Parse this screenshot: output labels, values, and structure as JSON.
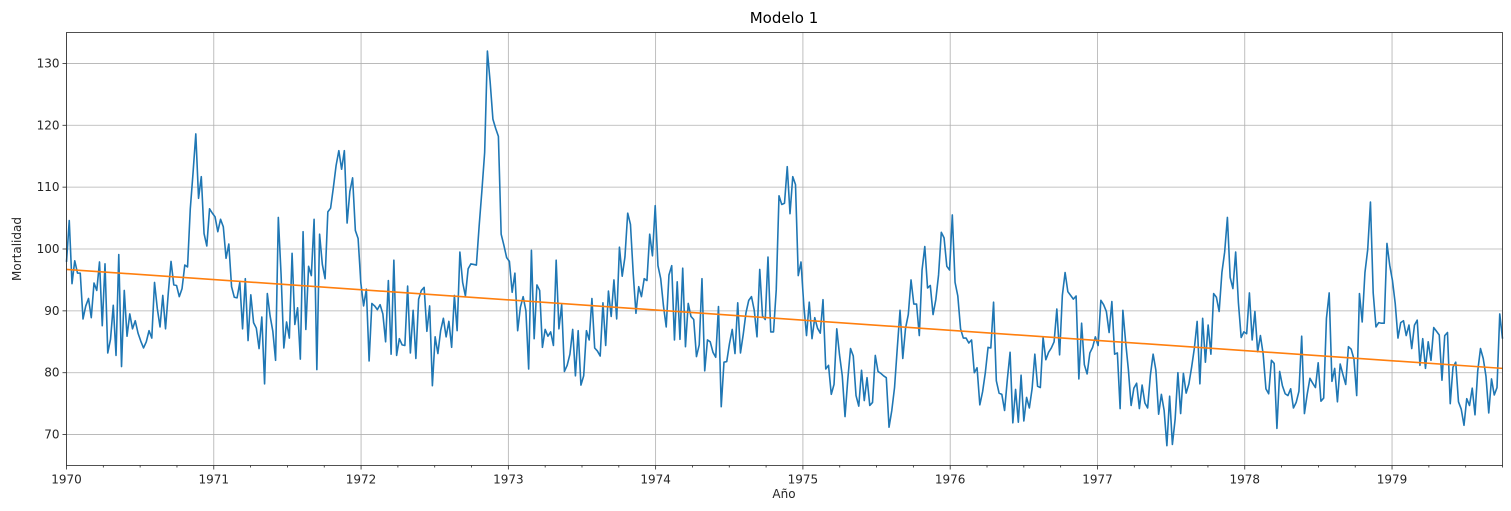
{
  "chart_data": {
    "type": "line",
    "title": "Modelo 1",
    "xlabel": "Año",
    "ylabel": "Mortalidad",
    "xlim": [
      1970.0,
      1979.75
    ],
    "ylim": [
      65,
      135
    ],
    "grid": true,
    "legend": "none",
    "x_ticks": [
      "1970",
      "1971",
      "1972",
      "1973",
      "1974",
      "1975",
      "1976",
      "1977",
      "1978",
      "1979"
    ],
    "y_ticks": [
      70,
      80,
      90,
      100,
      110,
      120,
      130
    ],
    "colors": {
      "series": "#1f77b4",
      "trend": "#ff7f0e"
    },
    "series": [
      {
        "weekly_values": [
          97.9,
          104.6,
          94.4,
          98.1,
          96.1,
          96.1,
          88.7,
          90.8,
          92.0,
          88.9,
          94.5,
          93.3,
          97.9,
          87.6,
          97.6,
          83.2,
          85.4,
          90.9,
          82.8,
          99.1,
          81.0,
          93.3,
          85.9,
          89.5,
          87.1,
          88.4,
          86.4,
          85.1,
          84.0,
          85.0,
          86.8,
          85.6,
          94.6,
          90.4,
          87.4,
          92.5,
          87.1,
          92.9,
          98.0,
          94.2,
          94.1,
          92.3,
          93.6,
          97.4,
          97.1,
          106.5,
          112.3,
          118.6,
          108.2,
          111.7,
          102.5,
          100.5,
          106.5,
          105.8,
          105.2,
          102.8,
          104.8,
          103.6,
          98.5,
          100.8,
          93.9,
          92.2,
          92.1,
          94.6,
          87.1,
          95.2,
          85.2,
          92.6,
          88.1,
          87.2,
          83.9,
          89.0,
          78.2,
          92.8,
          89.2,
          86.7,
          82.0,
          105.1,
          95.9,
          84.0,
          88.2,
          85.6,
          99.3,
          87.8,
          90.5,
          82.2,
          102.8,
          87.0,
          97.2,
          95.7,
          104.8,
          80.5,
          102.4,
          97.5,
          95.2,
          106.0,
          106.6,
          109.9,
          113.5,
          115.9,
          112.9,
          115.9,
          104.2,
          109.3,
          111.5,
          103.0,
          101.7,
          94.5,
          90.8,
          93.5,
          81.9,
          91.2,
          90.8,
          90.2,
          91.0,
          89.5,
          85.0,
          94.9,
          83.0,
          98.2,
          82.8,
          85.5,
          84.5,
          84.4,
          94.0,
          83.2,
          90.1,
          82.3,
          91.9,
          93.3,
          93.8,
          86.7,
          90.8,
          77.9,
          85.8,
          83.1,
          86.8,
          88.8,
          85.8,
          88.3,
          84.1,
          92.5,
          86.8,
          99.5,
          94.6,
          92.4,
          96.8,
          97.6,
          97.5,
          97.4,
          103.7,
          109.4,
          115.6,
          132.0,
          127.0,
          121.0,
          119.5,
          118.2,
          102.4,
          100.6,
          98.6,
          98.0,
          93.0,
          96.1,
          86.8,
          90.6,
          92.3,
          90.0,
          80.6,
          99.8,
          85.5,
          94.2,
          93.3,
          84.1,
          87.0,
          85.9,
          86.6,
          84.4,
          98.2,
          87.1,
          91.0,
          80.2,
          81.2,
          83.0,
          87.0,
          79.5,
          86.8,
          78.0,
          79.5,
          86.8,
          85.3,
          92.0,
          84.0,
          83.5,
          82.7,
          91.3,
          84.4,
          93.2,
          89.1,
          95.0,
          88.7,
          100.3,
          95.6,
          98.7,
          105.8,
          104.0,
          96.1,
          89.6,
          93.9,
          92.3,
          95.2,
          94.9,
          102.4,
          98.9,
          107.0,
          97.3,
          95.2,
          90.8,
          87.4,
          95.8,
          97.3,
          85.3,
          94.7,
          85.4,
          96.9,
          84.2,
          91.2,
          89.1,
          88.6,
          82.6,
          84.5,
          95.2,
          80.3,
          85.3,
          85.0,
          83.3,
          82.5,
          90.7,
          74.5,
          81.7,
          81.8,
          84.7,
          87.0,
          83.1,
          91.3,
          83.2,
          86.2,
          89.7,
          91.7,
          92.3,
          90.1,
          85.8,
          96.7,
          89.2,
          88.6,
          98.7,
          86.6,
          86.6,
          93.4,
          108.6,
          107.2,
          107.4,
          113.3,
          105.7,
          111.7,
          110.4,
          95.7,
          97.9,
          91.0,
          86.0,
          91.4,
          85.5,
          88.9,
          87.2,
          86.4,
          91.8,
          80.6,
          81.2,
          76.5,
          78.1,
          87.1,
          82.9,
          79.5,
          72.9,
          78.9,
          83.9,
          82.7,
          76.3,
          74.6,
          80.4,
          75.5,
          79.2,
          74.7,
          75.2,
          82.8,
          80.2,
          79.9,
          79.5,
          79.2,
          71.2,
          73.9,
          77.6,
          84.0,
          90.1,
          82.3,
          87.2,
          89.4,
          95.0,
          91.1,
          91.1,
          86.0,
          96.6,
          100.4,
          93.7,
          94.1,
          89.4,
          91.8,
          95.8,
          102.7,
          101.8,
          97.2,
          96.6,
          105.5,
          94.6,
          92.4,
          87.1,
          85.6,
          85.6,
          84.8,
          85.3,
          80.0,
          80.8,
          74.8,
          76.9,
          80.0,
          84.1,
          84.0,
          91.4,
          78.7,
          76.7,
          76.5,
          73.9,
          78.9,
          83.3,
          71.9,
          77.3,
          72.0,
          79.6,
          72.2,
          76.0,
          74.3,
          77.4,
          83.0,
          77.8,
          77.6,
          85.7,
          82.1,
          83.3,
          84.0,
          85.0,
          90.3,
          82.9,
          92.5,
          96.2,
          93.1,
          92.5,
          91.9,
          92.4,
          79.0,
          88.0,
          81.3,
          79.8,
          83.2,
          84.1,
          85.8,
          84.4,
          91.7,
          91.0,
          89.9,
          86.5,
          91.5,
          83.0,
          83.2,
          74.2,
          90.1,
          85.0,
          80.5,
          74.7,
          77.5,
          78.3,
          74.2,
          78.0,
          75.1,
          74.3,
          79.6,
          83.0,
          80.4,
          73.3,
          76.5,
          73.9,
          68.2,
          76.2,
          68.4,
          72.5,
          80.0,
          73.4,
          79.9,
          76.7,
          78.2,
          80.9,
          84.0,
          88.3,
          78.2,
          88.8,
          81.7,
          87.7,
          83.0,
          92.8,
          92.2,
          89.9,
          96.2,
          99.5,
          105.1,
          95.4,
          93.6,
          99.5,
          91.3,
          85.7,
          86.6,
          86.3,
          92.9,
          85.3,
          89.9,
          83.4,
          86.0,
          83.0,
          77.4,
          76.6,
          82.0,
          81.5,
          71.0,
          80.2,
          77.9,
          76.6,
          76.3,
          77.4,
          74.3,
          75.2,
          77.0,
          85.9,
          73.4,
          76.5,
          79.1,
          78.3,
          77.6,
          81.6,
          75.4,
          75.9,
          88.8,
          92.9,
          78.6,
          80.7,
          75.3,
          81.4,
          79.7,
          78.1,
          84.2,
          83.8,
          82.2,
          76.3,
          92.8,
          88.2,
          96.2,
          99.9,
          107.6,
          92.9,
          87.4,
          88.1,
          88.0,
          88.0,
          100.9,
          97.4,
          94.9,
          91.2,
          85.6,
          88.1,
          88.4,
          86.0,
          87.7,
          83.9,
          87.7,
          88.5,
          81.2,
          85.5,
          80.7,
          85.0,
          82.0,
          87.3,
          86.7,
          86.1,
          78.8,
          86.0,
          86.5,
          75.0,
          80.9,
          81.7,
          75.3,
          74.1,
          71.5,
          75.8,
          74.7,
          77.5,
          73.2,
          80.3,
          83.9,
          82.3,
          79.4,
          73.5,
          79.0,
          76.4,
          77.6,
          89.5,
          85.5
        ]
      },
      {
        "start": 96.7,
        "end": 80.7
      }
    ]
  }
}
